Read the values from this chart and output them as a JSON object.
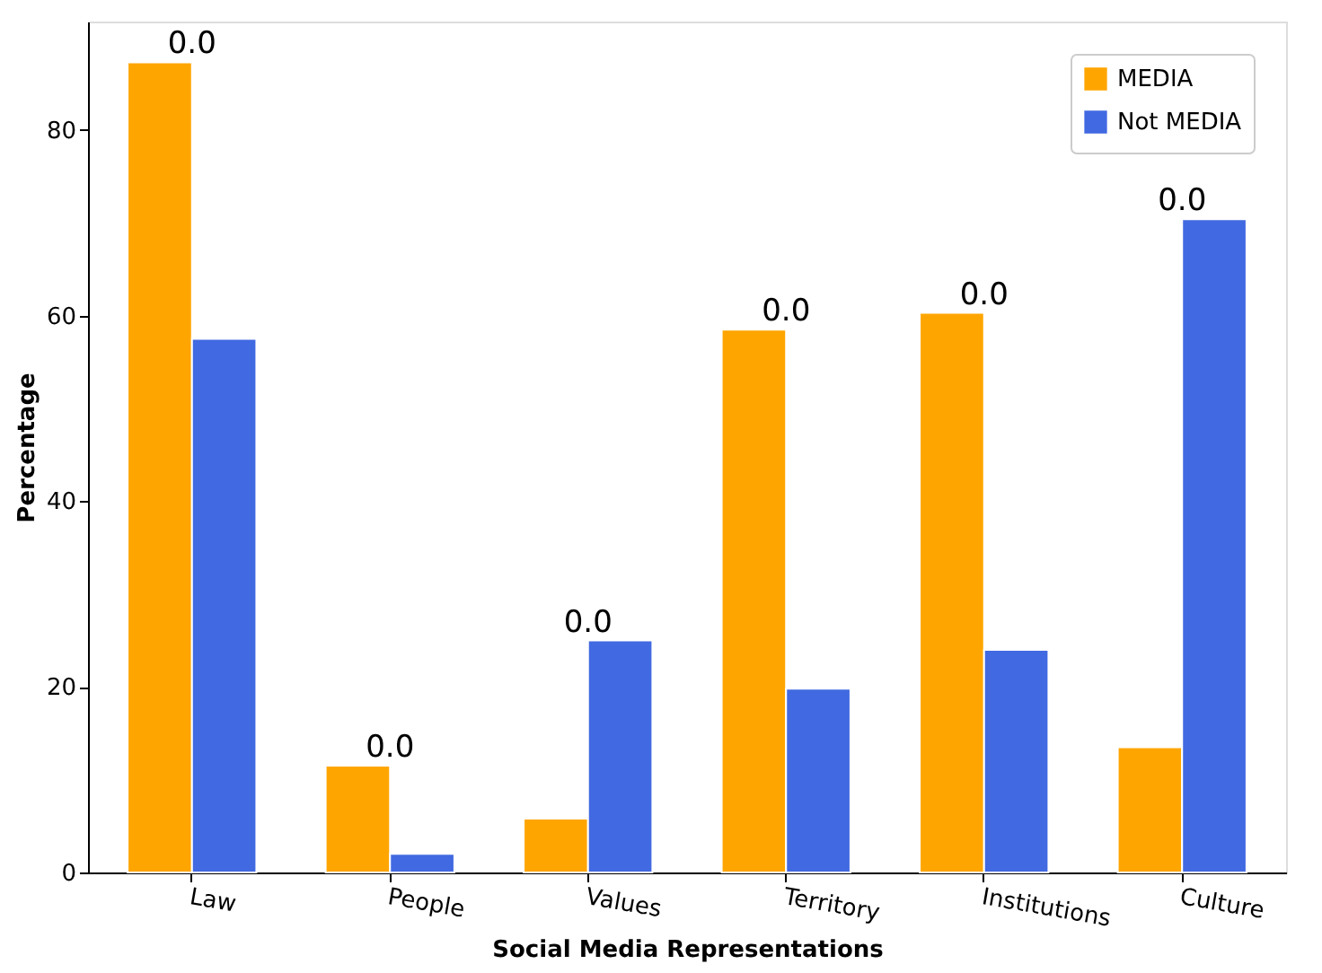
{
  "chart_data": {
    "type": "bar",
    "xlabel": "Social Media Representations",
    "ylabel": "Percentage",
    "categories": [
      "Law",
      "People",
      "Values",
      "Territory",
      "Institutions",
      "Culture"
    ],
    "series": [
      {
        "name": "MEDIA",
        "color": "#ffa500",
        "values": [
          87.3,
          11.5,
          5.8,
          58.5,
          60.3,
          13.5
        ]
      },
      {
        "name": "Not MEDIA",
        "color": "#4169e1",
        "values": [
          57.5,
          2.0,
          25.0,
          19.8,
          24.0,
          70.4
        ]
      }
    ],
    "annotations": [
      "0.0",
      "0.0",
      "0.0",
      "0.0",
      "0.0",
      "0.0"
    ],
    "ylim": [
      0,
      91.7
    ],
    "yticks": [
      0,
      20,
      40,
      60,
      80
    ],
    "grid": false,
    "legend": "top right"
  }
}
